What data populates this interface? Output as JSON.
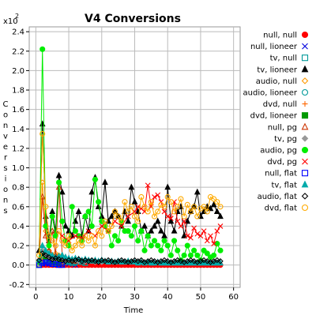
{
  "chart_data": {
    "type": "line",
    "title": "V4 Conversions",
    "xlabel": "Time",
    "ylabel": "Conversions",
    "y_scale_label": "x10",
    "y_scale_exponent": "2",
    "xlim": [
      -2,
      62
    ],
    "ylim": [
      -0.23,
      2.45
    ],
    "x_ticks": [
      0,
      10,
      20,
      30,
      40,
      50,
      60
    ],
    "y_ticks": [
      -0.2,
      0.0,
      0.2,
      0.4,
      0.6,
      0.8,
      1.0,
      1.2,
      1.4,
      1.6,
      1.8,
      2.0,
      2.2,
      2.4
    ],
    "grid": true,
    "legend_position": "right",
    "series": [
      {
        "name": "null, null",
        "color": "#ff0000",
        "marker": "circle",
        "fill": true,
        "x": [
          1,
          2,
          3,
          4,
          5,
          6,
          7,
          8,
          9,
          10,
          11,
          12,
          13,
          14,
          15,
          16,
          17,
          18,
          19,
          20,
          21,
          22,
          23,
          24,
          25,
          26,
          27,
          28,
          29,
          30,
          31,
          32,
          33,
          34,
          35,
          36,
          37,
          38,
          39,
          40,
          41,
          42,
          43,
          44,
          45,
          46,
          47,
          48,
          49,
          50,
          51,
          52,
          53,
          54,
          55,
          56
        ],
        "y": [
          0,
          0,
          0,
          0,
          0,
          0,
          0,
          0,
          0,
          0,
          0,
          0,
          0,
          0,
          0,
          0,
          0,
          0,
          0,
          0,
          0,
          0,
          0,
          0,
          0,
          0,
          0,
          0,
          0,
          0,
          0,
          0,
          0,
          0,
          0,
          0,
          0,
          0,
          0,
          0,
          0,
          0,
          0,
          0,
          0,
          0,
          0,
          0,
          0,
          0,
          0,
          0,
          0,
          0,
          0,
          0
        ]
      },
      {
        "name": "null, lioneer",
        "color": "#0000dd",
        "marker": "x",
        "x": [
          1,
          2,
          3,
          4,
          5,
          6,
          8,
          10,
          12
        ],
        "y": [
          0,
          0.01,
          0.02,
          0.01,
          0.01,
          0,
          0,
          0.01,
          0
        ]
      },
      {
        "name": "tv, null",
        "color": "#009999",
        "marker": "square",
        "x": [
          1,
          2,
          3,
          4,
          5,
          6,
          7,
          8,
          9,
          10,
          11,
          12,
          13,
          14,
          15
        ],
        "y": [
          0,
          0.03,
          0.05,
          0.04,
          0.03,
          0.02,
          0.03,
          0.05,
          0.04,
          0.03,
          0.02,
          0.03,
          0.04,
          0.03,
          0.02
        ]
      },
      {
        "name": "tv, lioneer",
        "color": "#000000",
        "marker": "triangle",
        "fill": true,
        "x": [
          1,
          2,
          3,
          4,
          5,
          6,
          7,
          8,
          9,
          10,
          11,
          12,
          13,
          14,
          15,
          16,
          17,
          18,
          19,
          20,
          21,
          22,
          23,
          24,
          25,
          26,
          27,
          28,
          29,
          30,
          31,
          32,
          33,
          34,
          35,
          36,
          37,
          38,
          39,
          40,
          41,
          42,
          43,
          44,
          45,
          46,
          47,
          48,
          49,
          50,
          51,
          52,
          53,
          54,
          55,
          56
        ],
        "y": [
          0.15,
          1.45,
          0.5,
          0.25,
          0.55,
          0.35,
          0.92,
          0.75,
          0.4,
          0.35,
          0.3,
          0.45,
          0.55,
          0.3,
          0.5,
          0.35,
          0.75,
          0.9,
          0.6,
          0.5,
          0.85,
          0.45,
          0.5,
          0.55,
          0.5,
          0.4,
          0.55,
          0.45,
          0.8,
          0.65,
          0.55,
          0.35,
          0.4,
          0.3,
          0.35,
          0.4,
          0.45,
          0.35,
          0.3,
          0.8,
          0.45,
          0.35,
          0.55,
          0.6,
          0.3,
          0.45,
          0.55,
          0.6,
          0.75,
          0.5,
          0.55,
          0.6,
          0.58,
          0.62,
          0.55,
          0.5
        ]
      },
      {
        "name": "audio, null",
        "color": "#ff9900",
        "marker": "diamond",
        "x": [
          1,
          2,
          3,
          4,
          5,
          6,
          7,
          8,
          9,
          10
        ],
        "y": [
          0.05,
          0.85,
          0.35,
          0.15,
          0.1,
          0.12,
          0.1,
          0.08,
          0.07,
          0.05
        ]
      },
      {
        "name": "audio, lioneer",
        "color": "#009999",
        "marker": "circle",
        "x": [
          1,
          2,
          3,
          4,
          5,
          6,
          7,
          8,
          9,
          10,
          11,
          12
        ],
        "y": [
          0,
          0.1,
          0.06,
          0.05,
          0.04,
          0.03,
          0.04,
          0.05,
          0.03,
          0.04,
          0.03,
          0.02
        ]
      },
      {
        "name": "dvd, null",
        "color": "#ff6600",
        "marker": "plus",
        "x": [
          1,
          2,
          3,
          4,
          5,
          6,
          7,
          8
        ],
        "y": [
          0,
          0.05,
          0.1,
          0.06,
          0.04,
          0.03,
          0.02,
          0.02
        ]
      },
      {
        "name": "dvd, lioneer",
        "color": "#009900",
        "marker": "square",
        "fill": true,
        "x": [
          1,
          2,
          3,
          4,
          5,
          6,
          7
        ],
        "y": [
          0,
          0.12,
          0.08,
          0.06,
          0.04,
          0.03,
          0.02
        ]
      },
      {
        "name": "null, pg",
        "color": "#cc3300",
        "marker": "triangle",
        "x": [
          1,
          2,
          3,
          4,
          5,
          6,
          7,
          8,
          9,
          10,
          11,
          12
        ],
        "y": [
          0.02,
          0.7,
          0.3,
          0.15,
          0.35,
          0.1,
          0.8,
          0.1,
          0.08,
          0.06,
          0.05,
          0.04
        ]
      },
      {
        "name": "tv, pg",
        "color": "#999999",
        "marker": "diamond",
        "fill": true,
        "x": [
          1,
          2,
          3,
          4,
          5,
          6,
          7,
          8,
          9,
          10,
          11,
          12,
          13,
          14,
          15,
          16,
          17,
          18,
          19,
          20
        ],
        "y": [
          0,
          0.15,
          0.1,
          0.08,
          0.07,
          0.06,
          0.08,
          0.07,
          0.06,
          0.05,
          0.06,
          0.05,
          0.04,
          0.05,
          0.04,
          0.05,
          0.04,
          0.03,
          0.04,
          0.03
        ]
      },
      {
        "name": "audio, pg",
        "color": "#00ee00",
        "marker": "circle",
        "fill": true,
        "x": [
          1,
          2,
          3,
          4,
          5,
          6,
          7,
          8,
          9,
          10,
          11,
          12,
          13,
          14,
          15,
          16,
          17,
          18,
          19,
          20,
          21,
          22,
          23,
          24,
          25,
          26,
          27,
          28,
          29,
          30,
          31,
          32,
          33,
          34,
          35,
          36,
          37,
          38,
          39,
          40,
          41,
          42,
          43,
          44,
          45,
          46,
          47,
          48,
          49,
          50,
          51,
          52,
          53,
          54,
          55,
          56
        ],
        "y": [
          0.03,
          2.22,
          0.4,
          0.2,
          0.5,
          0.3,
          0.85,
          0.45,
          0.25,
          0.2,
          0.6,
          0.35,
          0.3,
          0.25,
          0.5,
          0.55,
          0.4,
          0.88,
          0.65,
          0.45,
          0.4,
          0.35,
          0.2,
          0.3,
          0.25,
          0.45,
          0.35,
          0.35,
          0.3,
          0.4,
          0.25,
          0.35,
          0.15,
          0.3,
          0.2,
          0.25,
          0.2,
          0.15,
          0.25,
          0.2,
          0.1,
          0.25,
          0.15,
          0.05,
          0.1,
          0.2,
          0.1,
          0.15,
          0.1,
          0.05,
          0.15,
          0.12,
          0.08,
          0.1,
          0.22,
          0.15
        ]
      },
      {
        "name": "dvd, pg",
        "color": "#ff0000",
        "marker": "x",
        "x": [
          8,
          10,
          12,
          14,
          16,
          18,
          20,
          22,
          24,
          26,
          28,
          30,
          31,
          32,
          33,
          34,
          35,
          36,
          37,
          38,
          39,
          40,
          41,
          42,
          43,
          44,
          45,
          46,
          47,
          48,
          49,
          50,
          51,
          52,
          53,
          54,
          55,
          56
        ],
        "y": [
          0.3,
          0.25,
          0.3,
          0.28,
          0.35,
          0.3,
          0.4,
          0.35,
          0.45,
          0.4,
          0.5,
          0.55,
          0.6,
          0.58,
          0.55,
          0.82,
          0.6,
          0.7,
          0.72,
          0.65,
          0.55,
          0.5,
          0.48,
          0.65,
          0.45,
          0.4,
          0.45,
          0.3,
          0.28,
          0.38,
          0.32,
          0.3,
          0.35,
          0.25,
          0.3,
          0.22,
          0.35,
          0.4
        ]
      },
      {
        "name": "null, flat",
        "color": "#0000ff",
        "marker": "square",
        "x": [
          1,
          2,
          3,
          4,
          5,
          6,
          7,
          8
        ],
        "y": [
          0,
          0.02,
          0.03,
          0.02,
          0.01,
          0.01,
          0,
          0
        ]
      },
      {
        "name": "tv, flat",
        "color": "#00aaaa",
        "marker": "triangle",
        "fill": true,
        "x": [
          1,
          2,
          3,
          4,
          5,
          6,
          7,
          8,
          9,
          10,
          11,
          12,
          13,
          14,
          15,
          16,
          17,
          18,
          19,
          20,
          21,
          22,
          23,
          24,
          25,
          26,
          27,
          28,
          29,
          30,
          31,
          32,
          33,
          34,
          35,
          36,
          37,
          38,
          39,
          40,
          41,
          42,
          43,
          44,
          45,
          46,
          47,
          48,
          49,
          50,
          51,
          52,
          53,
          54,
          55,
          56
        ],
        "y": [
          0.05,
          0.2,
          0.15,
          0.12,
          0.1,
          0.08,
          0.09,
          0.1,
          0.08,
          0.07,
          0.06,
          0.07,
          0.06,
          0.05,
          0.06,
          0.05,
          0.04,
          0.05,
          0.04,
          0.05,
          0.04,
          0.03,
          0.04,
          0.03,
          0.04,
          0.03,
          0.03,
          0.04,
          0.03,
          0.03,
          0.02,
          0.03,
          0.02,
          0.03,
          0.02,
          0.02,
          0.03,
          0.02,
          0.02,
          0.02,
          0.02,
          0.02,
          0.02,
          0.02,
          0.02,
          0.02,
          0.02,
          0.02,
          0.02,
          0.02,
          0.02,
          0.02,
          0.02,
          0.02,
          0.02,
          0.02
        ]
      },
      {
        "name": "audio, flat",
        "color": "#000000",
        "marker": "diamond",
        "x": [
          1,
          2,
          3,
          4,
          5,
          6,
          7,
          8,
          9,
          10,
          11,
          12,
          13,
          14,
          15,
          16,
          17,
          18,
          19,
          20,
          21,
          22,
          23,
          24,
          25,
          26,
          27,
          28,
          29,
          30,
          31,
          32,
          33,
          34,
          35,
          36,
          37,
          38,
          39,
          40,
          41,
          42,
          43,
          44,
          45,
          46,
          47,
          48,
          49,
          50,
          51,
          52,
          53,
          54,
          55,
          56
        ],
        "y": [
          0.05,
          0.12,
          0.1,
          0.08,
          0.06,
          0.07,
          0.06,
          0.05,
          0.04,
          0.05,
          0.04,
          0.05,
          0.06,
          0.04,
          0.05,
          0.04,
          0.05,
          0.04,
          0.03,
          0.05,
          0.04,
          0.05,
          0.04,
          0.03,
          0.04,
          0.05,
          0.04,
          0.03,
          0.04,
          0.05,
          0.04,
          0.05,
          0.03,
          0.04,
          0.05,
          0.04,
          0.03,
          0.04,
          0.05,
          0.04,
          0.03,
          0.04,
          0.05,
          0.04,
          0.03,
          0.04,
          0.05,
          0.04,
          0.03,
          0.04,
          0.05,
          0.04,
          0.03,
          0.04,
          0.05,
          0.04
        ]
      },
      {
        "name": "dvd, flat",
        "color": "#ffaa00",
        "marker": "circle",
        "x": [
          1,
          2,
          3,
          4,
          5,
          6,
          7,
          8,
          9,
          10,
          11,
          12,
          13,
          14,
          15,
          16,
          17,
          18,
          19,
          20,
          21,
          22,
          23,
          24,
          25,
          26,
          27,
          28,
          29,
          30,
          31,
          32,
          33,
          34,
          35,
          36,
          37,
          38,
          39,
          40,
          41,
          42,
          43,
          44,
          45,
          46,
          47,
          48,
          49,
          50,
          51,
          52,
          53,
          54,
          55,
          56
        ],
        "y": [
          0.1,
          1.35,
          0.6,
          0.3,
          0.25,
          0.2,
          0.35,
          0.25,
          0.2,
          0.3,
          0.15,
          0.2,
          0.25,
          0.2,
          0.3,
          0.25,
          0.3,
          0.2,
          0.35,
          0.3,
          0.45,
          0.35,
          0.4,
          0.55,
          0.5,
          0.45,
          0.65,
          0.55,
          0.6,
          0.5,
          0.45,
          0.7,
          0.6,
          0.55,
          0.65,
          0.5,
          0.55,
          0.62,
          0.6,
          0.7,
          0.65,
          0.55,
          0.6,
          0.68,
          0.5,
          0.62,
          0.55,
          0.6,
          0.5,
          0.58,
          0.6,
          0.55,
          0.7,
          0.68,
          0.65,
          0.6
        ]
      }
    ]
  }
}
